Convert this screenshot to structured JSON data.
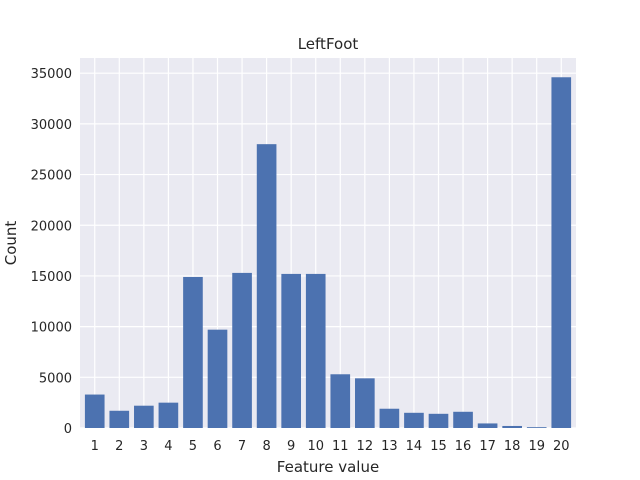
{
  "chart_data": {
    "type": "bar",
    "title": "LeftFoot",
    "xlabel": "Feature value",
    "ylabel": "Count",
    "categories": [
      "1",
      "2",
      "3",
      "4",
      "5",
      "6",
      "7",
      "8",
      "9",
      "10",
      "11",
      "12",
      "13",
      "14",
      "15",
      "16",
      "17",
      "18",
      "19",
      "20"
    ],
    "values": [
      3300,
      1700,
      2200,
      2500,
      14900,
      9700,
      15300,
      28000,
      15200,
      15200,
      5300,
      4900,
      1900,
      1500,
      1400,
      1600,
      450,
      200,
      80,
      34600
    ],
    "ylim": [
      0,
      36500
    ],
    "yticks": [
      0,
      5000,
      10000,
      15000,
      20000,
      25000,
      30000,
      35000
    ],
    "ytick_labels": [
      "0",
      "5000",
      "10000",
      "15000",
      "20000",
      "25000",
      "30000",
      "35000"
    ],
    "grid": true,
    "colors": {
      "bar": "#4c72b0",
      "background": "#eaeaf2",
      "grid": "#ffffff"
    }
  }
}
